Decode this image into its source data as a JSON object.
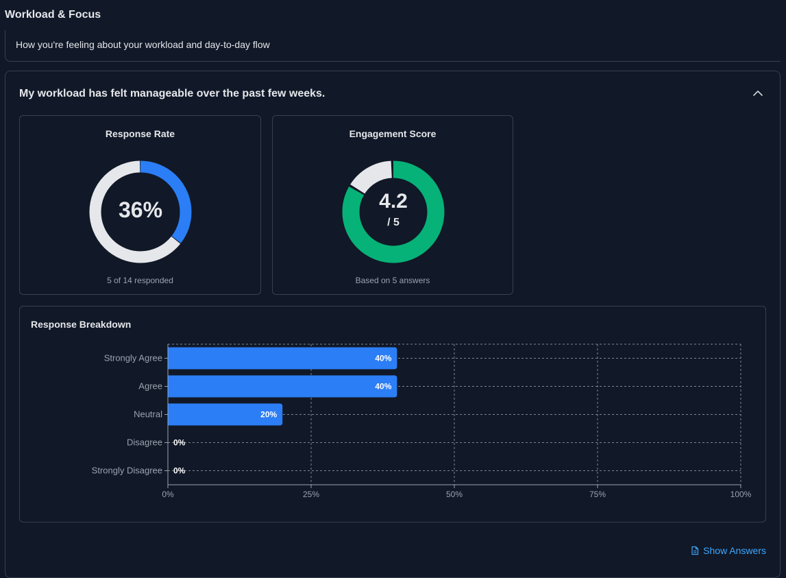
{
  "section": {
    "title": "Workload & Focus",
    "description": "How you're feeling about your workload and day-to-day flow"
  },
  "question": {
    "title": "My workload has felt manageable over the past few weeks.",
    "collapse_icon": "chevron-up-icon"
  },
  "response_rate": {
    "title": "Response Rate",
    "value_label": "36%",
    "fraction": 0.357,
    "footer": "5 of 14 responded",
    "colors": {
      "filled": "#2b7ef5",
      "track": "#e5e7eb"
    }
  },
  "engagement": {
    "title": "Engagement Score",
    "value": "4.2",
    "scale_label": "/ 5",
    "fraction": 0.84,
    "footer": "Based on 5 answers",
    "colors": {
      "filled": "#06b277",
      "track": "#e5e7eb"
    }
  },
  "breakdown": {
    "title": "Response Breakdown"
  },
  "chart_data": {
    "type": "bar",
    "orientation": "horizontal",
    "title": "Response Breakdown",
    "categories": [
      "Strongly Agree",
      "Agree",
      "Neutral",
      "Disagree",
      "Strongly Disagree"
    ],
    "values": [
      40,
      40,
      20,
      0,
      0
    ],
    "value_labels": [
      "40%",
      "40%",
      "20%",
      "0%",
      "0%"
    ],
    "xlim": [
      0,
      100
    ],
    "x_ticks": [
      "0%",
      "25%",
      "50%",
      "75%",
      "100%"
    ],
    "grid": true,
    "bar_color": "#2b7ef5"
  },
  "footer": {
    "show_answers": "Show Answers",
    "icon": "document-icon"
  }
}
